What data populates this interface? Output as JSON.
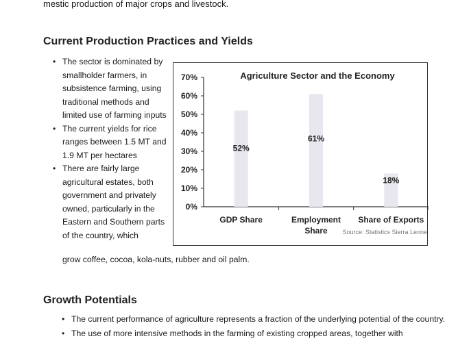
{
  "intro": {
    "text": "mestic production of major crops and livestock."
  },
  "section1": {
    "heading": "Current Production Practices and Yields",
    "bullets": [
      "The sector is dominated by smallholder farmers, in subsistence farming, using traditional methods and limited use of farming inputs",
      "The current yields for rice ranges between 1.5 MT and 1.9 MT per hectares",
      "There are fairly large agricultural estates, both government and privately owned, particularly in the Eastern and Southern parts of the country, which"
    ],
    "tail": "grow coffee, cocoa, kola-nuts, rubber and oil palm."
  },
  "chart_data": {
    "type": "bar",
    "title": "Agriculture Sector and the Economy",
    "categories": [
      "GDP Share",
      "Employment Share",
      "Share of Exports"
    ],
    "values": [
      52,
      61,
      18
    ],
    "data_labels": [
      "52%",
      "61%",
      "18%"
    ],
    "ylim": [
      0,
      70
    ],
    "yticks": [
      "0%",
      "10%",
      "20%",
      "30%",
      "40%",
      "50%",
      "60%",
      "70%"
    ],
    "source": "Source: Statistics Sierra Leone",
    "bar_color": "#e8e6ee",
    "grid": false,
    "legend": "none"
  },
  "section2": {
    "heading": "Growth Potentials",
    "bullets": [
      "The current performance of agriculture represents a fraction of the underlying potential of the country.",
      "The use of more intensive methods in the farming of existing cropped areas, together with"
    ]
  }
}
